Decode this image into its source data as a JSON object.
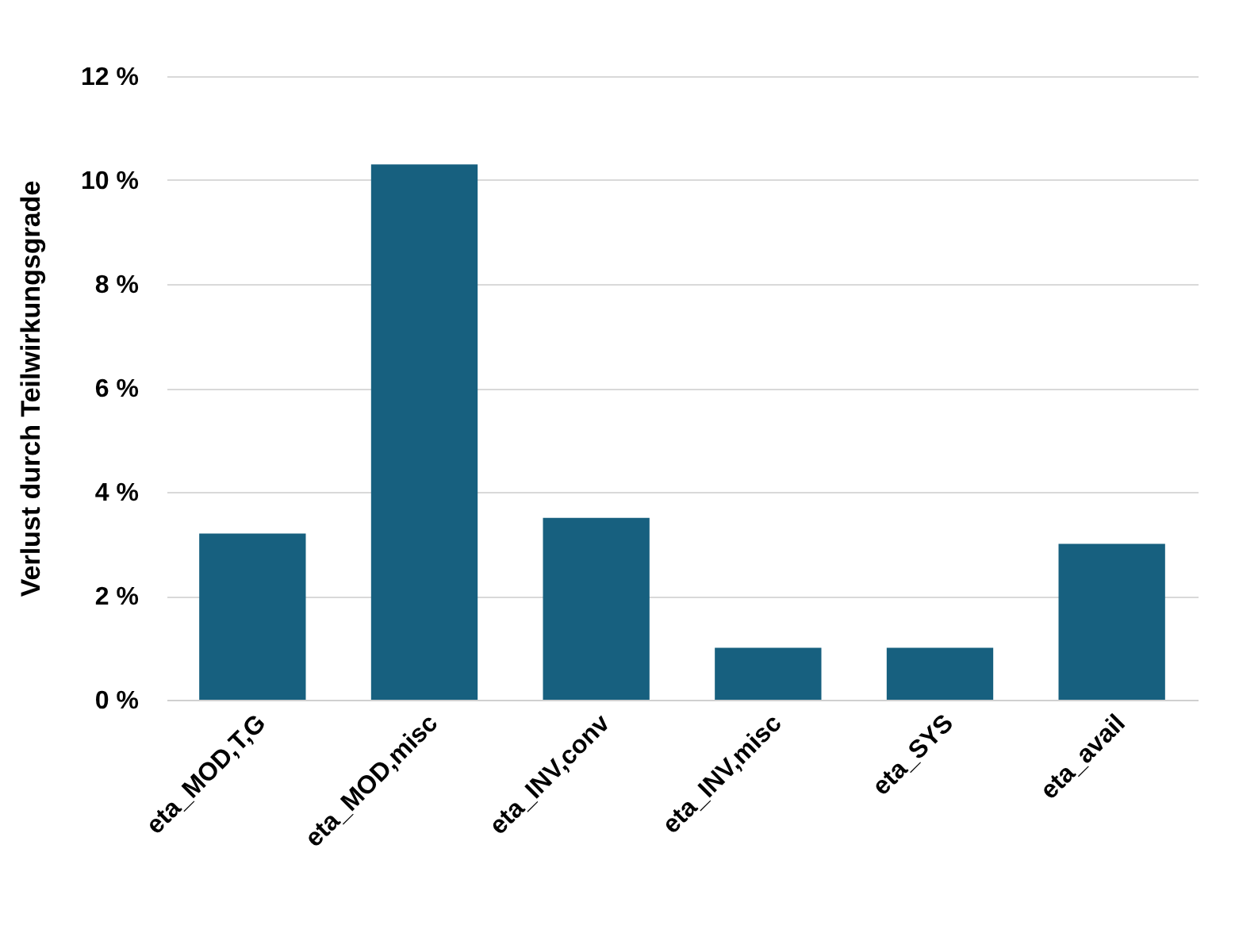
{
  "chart_data": {
    "type": "bar",
    "ylabel": "Verlust durch Teilwirkungsgrade",
    "categories": [
      "eta_MOD,T,G",
      "eta_MOD,misc",
      "eta_INV,conv",
      "eta_INV,misc",
      "eta_SYS",
      "eta_avail"
    ],
    "values": [
      3.2,
      10.3,
      3.5,
      1.0,
      1.0,
      3.0
    ],
    "color": "#17607f",
    "ylim": [
      0,
      12
    ],
    "yticks": [
      {
        "value": 0,
        "label": "0 %"
      },
      {
        "value": 2,
        "label": "2 %"
      },
      {
        "value": 4,
        "label": "4 %"
      },
      {
        "value": 6,
        "label": "6 %"
      },
      {
        "value": 8,
        "label": "8 %"
      },
      {
        "value": 10,
        "label": "10 %"
      },
      {
        "value": 12,
        "label": "12 %"
      }
    ],
    "grid": "y"
  }
}
